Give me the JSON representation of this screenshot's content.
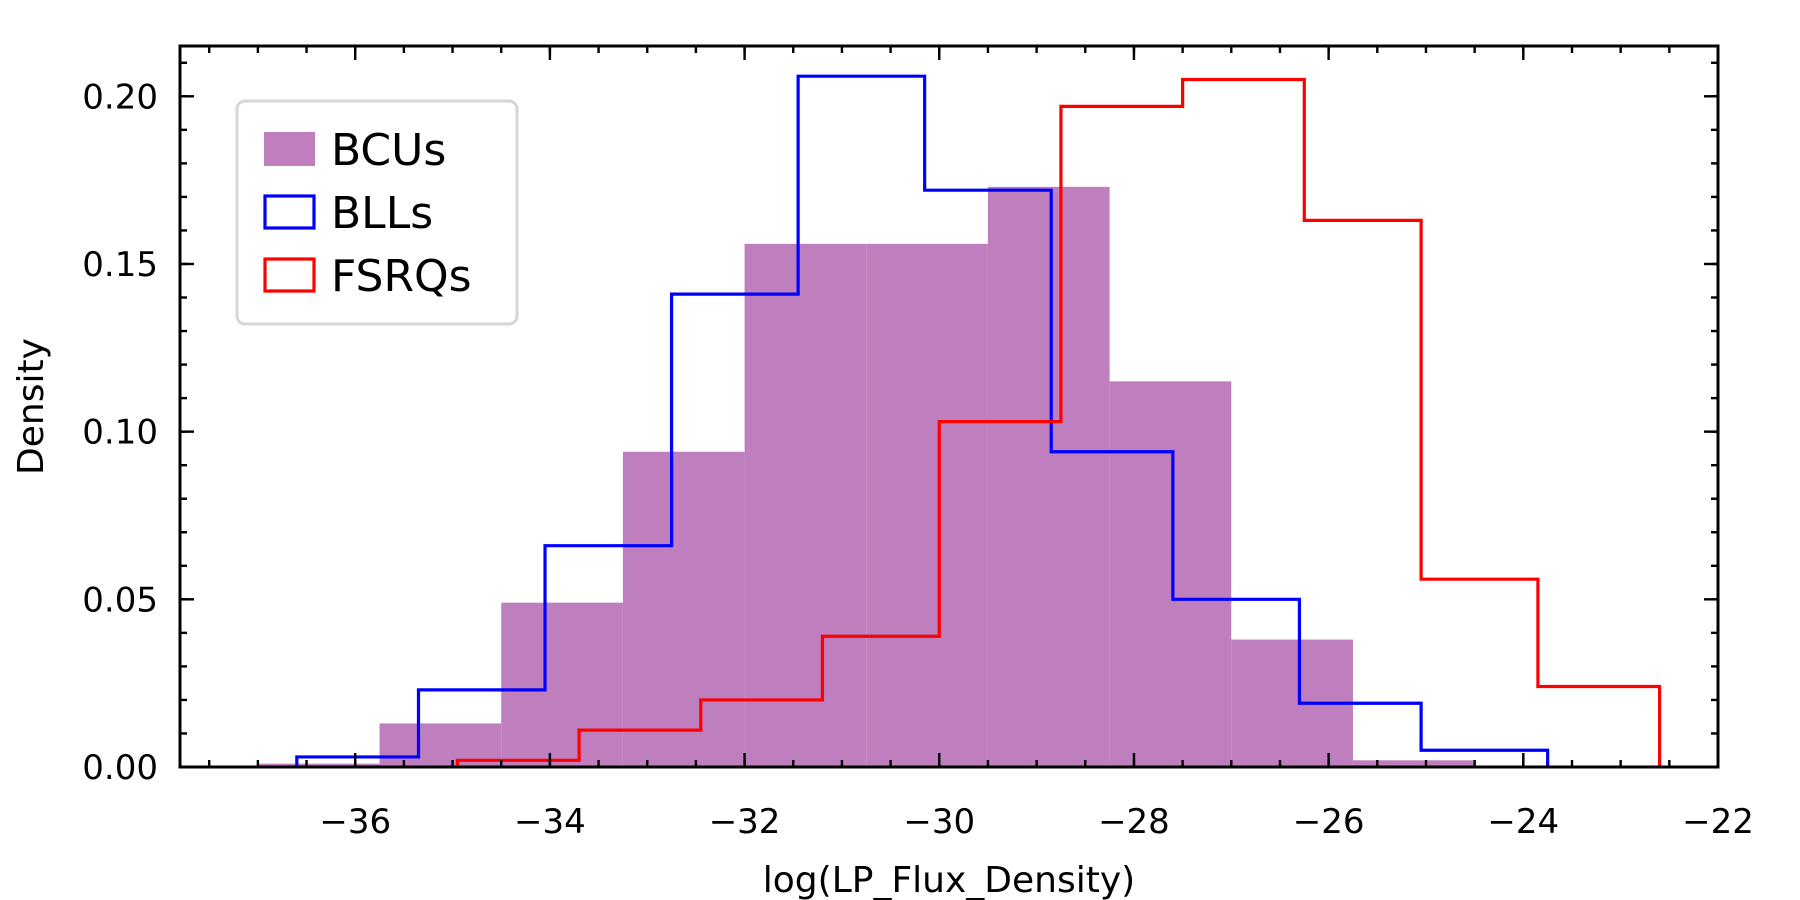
{
  "chart_data": {
    "type": "histogram",
    "xlabel": "log(LP_Flux_Density)",
    "ylabel": "Density",
    "xlim": [
      -37.8,
      -22.0
    ],
    "ylim": [
      0.0,
      0.215
    ],
    "x_ticks": [
      -36,
      -34,
      -32,
      -30,
      -28,
      -26,
      -24,
      -22
    ],
    "x_tick_labels": [
      "−36",
      "−34",
      "−32",
      "−30",
      "−28",
      "−26",
      "−24",
      "−22"
    ],
    "x_minor_step": 0.5,
    "y_ticks": [
      0.0,
      0.05,
      0.1,
      0.15,
      0.2
    ],
    "y_tick_labels": [
      "0.00",
      "0.05",
      "0.10",
      "0.15",
      "0.20"
    ],
    "y_minor_step": 0.01,
    "grid": false,
    "legend_position": "top-left",
    "series": [
      {
        "name": "BCUs",
        "style": "filled",
        "color": "#bf7fbf",
        "edges": [
          -37.0,
          -35.75,
          -34.5,
          -33.25,
          -32.0,
          -30.75,
          -29.5,
          -28.25,
          -27.0,
          -25.75,
          -24.5
        ],
        "values": [
          0.001,
          0.013,
          0.049,
          0.094,
          0.156,
          0.156,
          0.173,
          0.115,
          0.038,
          0.002
        ]
      },
      {
        "name": "BLLs",
        "style": "step",
        "color": "#0000ff",
        "edges": [
          -36.6,
          -35.35,
          -34.05,
          -32.75,
          -31.45,
          -30.15,
          -28.85,
          -27.6,
          -26.3,
          -25.05,
          -23.75
        ],
        "values": [
          0.003,
          0.023,
          0.066,
          0.141,
          0.206,
          0.172,
          0.094,
          0.05,
          0.019,
          0.005
        ]
      },
      {
        "name": "FSRQs",
        "style": "step",
        "color": "#ff0000",
        "edges": [
          -34.95,
          -33.7,
          -32.45,
          -31.2,
          -30.0,
          -28.75,
          -27.5,
          -26.25,
          -25.05,
          -23.85,
          -22.6
        ],
        "values": [
          0.002,
          0.011,
          0.02,
          0.039,
          0.103,
          0.197,
          0.205,
          0.163,
          0.056,
          0.024
        ]
      }
    ]
  }
}
